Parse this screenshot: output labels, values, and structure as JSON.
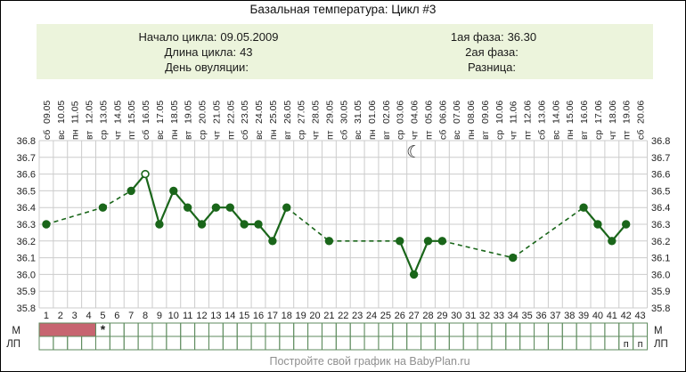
{
  "header": {
    "title": "Базальная температура: Цикл #3"
  },
  "info": {
    "left": [
      {
        "label": "Начало цикла:",
        "value": "09.05.2009"
      },
      {
        "label": "Длина цикла:",
        "value": "43"
      },
      {
        "label": "День овуляции:",
        "value": ""
      }
    ],
    "right": [
      {
        "label": "1ая фаза:",
        "value": "36.30"
      },
      {
        "label": "2ая фаза:",
        "value": ""
      },
      {
        "label": "Разница:",
        "value": ""
      }
    ]
  },
  "chart_data": {
    "type": "line",
    "title": "Базальная температура: Цикл #3",
    "ylim": [
      35.8,
      36.8
    ],
    "ytick_step": 0.1,
    "x_days": 43,
    "dates": [
      "09.05",
      "10.05",
      "11.05",
      "12.05",
      "13.05",
      "14.05",
      "15.05",
      "16.05",
      "17.05",
      "18.05",
      "19.05",
      "20.05",
      "21.05",
      "22.05",
      "23.05",
      "24.05",
      "25.05",
      "26.05",
      "27.05",
      "28.05",
      "29.05",
      "30.05",
      "31.05",
      "01.06",
      "02.06",
      "03.06",
      "04.06",
      "05.06",
      "06.06",
      "07.06",
      "08.06",
      "09.06",
      "10.06",
      "11.06",
      "12.06",
      "13.06",
      "14.06",
      "15.06",
      "16.06",
      "17.06",
      "18.06",
      "19.06",
      "20.06"
    ],
    "weekdays": [
      "сб",
      "вс",
      "пн",
      "вт",
      "ср",
      "чт",
      "пт",
      "сб",
      "вс",
      "пн",
      "вт",
      "ср",
      "чт",
      "пт",
      "сб",
      "вс",
      "пн",
      "вт",
      "ср",
      "чт",
      "пт",
      "сб",
      "вс",
      "пн",
      "вт",
      "ср",
      "чт",
      "пт",
      "сб",
      "вс",
      "пн",
      "вт",
      "ср",
      "чт",
      "пт",
      "сб",
      "вс",
      "пн",
      "вт",
      "ср",
      "чт",
      "пт",
      "сб"
    ],
    "points": [
      {
        "day": 1,
        "temp": 36.3
      },
      {
        "day": 5,
        "temp": 36.4
      },
      {
        "day": 7,
        "temp": 36.5
      },
      {
        "day": 8,
        "temp": 36.6,
        "open": true
      },
      {
        "day": 9,
        "temp": 36.3
      },
      {
        "day": 10,
        "temp": 36.5
      },
      {
        "day": 11,
        "temp": 36.4
      },
      {
        "day": 12,
        "temp": 36.3
      },
      {
        "day": 13,
        "temp": 36.4
      },
      {
        "day": 14,
        "temp": 36.4
      },
      {
        "day": 15,
        "temp": 36.3
      },
      {
        "day": 16,
        "temp": 36.3
      },
      {
        "day": 17,
        "temp": 36.2
      },
      {
        "day": 18,
        "temp": 36.4
      },
      {
        "day": 21,
        "temp": 36.2
      },
      {
        "day": 26,
        "temp": 36.2
      },
      {
        "day": 27,
        "temp": 36.0
      },
      {
        "day": 28,
        "temp": 36.2
      },
      {
        "day": 29,
        "temp": 36.2
      },
      {
        "day": 34,
        "temp": 36.1
      },
      {
        "day": 39,
        "temp": 36.4
      },
      {
        "day": 40,
        "temp": 36.3
      },
      {
        "day": 41,
        "temp": 36.2
      },
      {
        "day": 42,
        "temp": 36.3
      }
    ],
    "moon_marker": {
      "day": 27,
      "glyph": "☾"
    },
    "menstruation_days": [
      1,
      2,
      3,
      4
    ],
    "menstruation_asterisk_day": 5,
    "asterisk_glyph": "*",
    "lp_marked_days": [
      42,
      43
    ],
    "lp_mark_text": "п",
    "row_labels": {
      "menstruation": "М",
      "lp": "ЛП"
    },
    "legend_position": "none",
    "grid": true,
    "colors": {
      "line": "#1a661a",
      "grid": "#cccccc",
      "menstruation_fill": "#c76570",
      "asterisk": "#c8394b",
      "cell_border": "#5c8a5c",
      "lp_mark": "#2b4f2b",
      "tick_text": "#222222"
    }
  },
  "footer": {
    "text": "Постройте свой график на BabyPlan.ru"
  }
}
